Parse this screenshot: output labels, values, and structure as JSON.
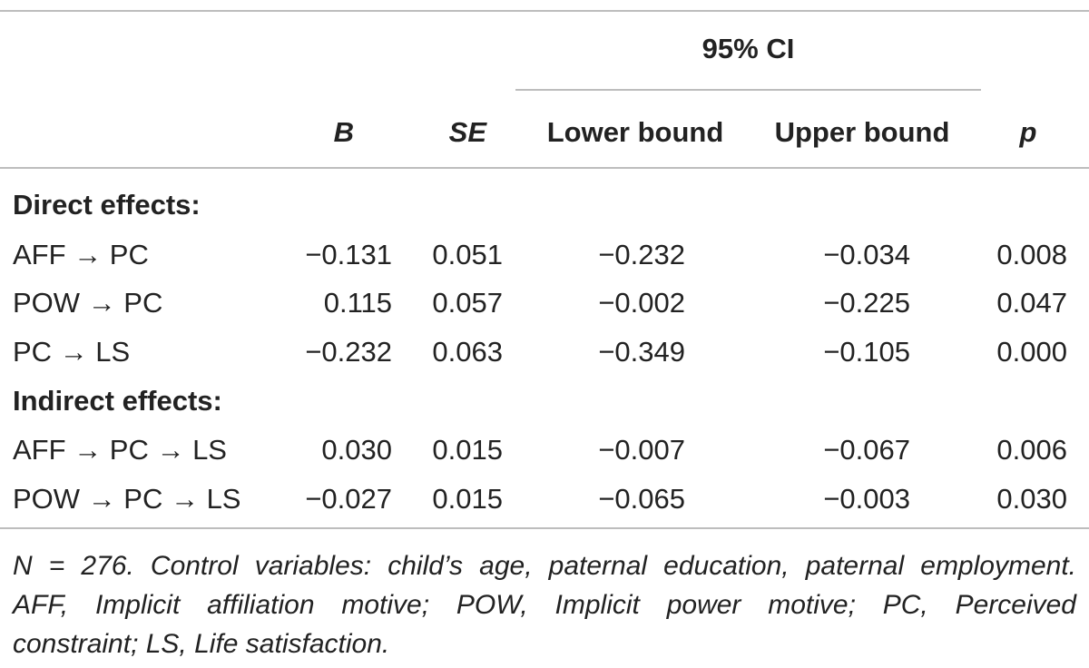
{
  "header": {
    "ci_group": "95% CI",
    "col_b": "B",
    "col_se": "SE",
    "col_lower": "Lower bound",
    "col_upper": "Upper bound",
    "col_p": "p"
  },
  "sections": [
    {
      "title": "Direct effects:",
      "rows": [
        {
          "label": "AFF → PC",
          "b": "−0.131",
          "se": "0.051",
          "lower": "−0.232",
          "upper": "−0.034",
          "p": "0.008"
        },
        {
          "label": "POW → PC",
          "b": "0.115",
          "se": "0.057",
          "lower": "−0.002",
          "upper": "−0.225",
          "p": "0.047"
        },
        {
          "label": "PC → LS",
          "b": "−0.232",
          "se": "0.063",
          "lower": "−0.349",
          "upper": "−0.105",
          "p": "0.000"
        }
      ]
    },
    {
      "title": "Indirect effects:",
      "rows": [
        {
          "label": "AFF → PC → LS",
          "b": "0.030",
          "se": "0.015",
          "lower": "−0.007",
          "upper": "−0.067",
          "p": "0.006"
        },
        {
          "label": "POW → PC → LS",
          "b": "−0.027",
          "se": "0.015",
          "lower": "−0.065",
          "upper": "−0.003",
          "p": "0.030"
        }
      ]
    }
  ],
  "note": {
    "line1": "N = 276. Control variables: child’s age, paternal education, paternal employment.",
    "line2": "AFF, Implicit affiliation motive; POW, Implicit power motive; PC, Perceived",
    "line3": "constraint; LS, Life satisfaction."
  }
}
